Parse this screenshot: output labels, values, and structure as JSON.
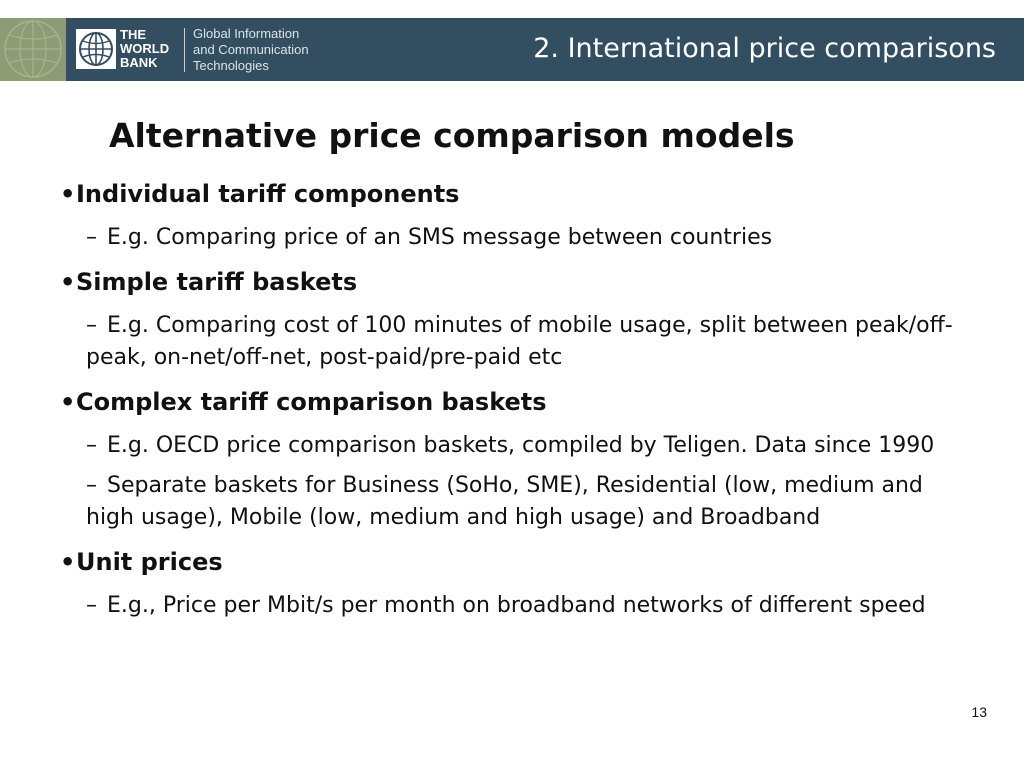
{
  "header": {
    "logo_lines": [
      "THE",
      "WORLD",
      "BANK"
    ],
    "unit_lines": [
      "Global Information",
      "and Communication",
      "Technologies"
    ],
    "section_title": "2. International price comparisons"
  },
  "slide": {
    "title": "Alternative price comparison models",
    "page_number": "13"
  },
  "bullets": [
    {
      "label": "Individual tariff components",
      "subs": [
        "E.g. Comparing price of an SMS message between countries"
      ]
    },
    {
      "label": "Simple tariff baskets",
      "subs": [
        "E.g. Comparing cost of 100 minutes of mobile usage, split between peak/off-peak, on-net/off-net, post-paid/pre-paid etc"
      ]
    },
    {
      "label": "Complex tariff comparison baskets",
      "subs": [
        "E.g. OECD price comparison baskets, compiled by Teligen. Data since 1990",
        "Separate baskets for Business (SoHo, SME), Residential (low, medium and high usage), Mobile (low, medium and high usage) and Broadband"
      ]
    },
    {
      "label": "Unit prices",
      "subs": [
        "E.g., Price per Mbit/s per month on broadband networks of different speed"
      ]
    }
  ],
  "symbols": {
    "bullet": "•",
    "dash": "–"
  },
  "colors": {
    "header_bg": "#324e60",
    "header_left_strip": "#8d9c74"
  }
}
